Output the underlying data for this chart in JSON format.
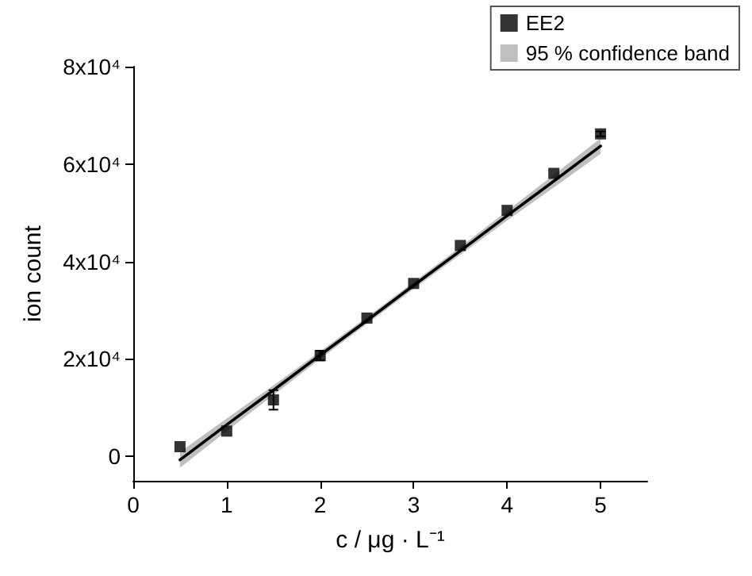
{
  "chart_data": {
    "type": "scatter",
    "xlabel": "c / μg · L⁻¹",
    "ylabel": "ion count",
    "xlim": [
      0,
      5.5
    ],
    "xticks": [
      0,
      1,
      2,
      3,
      4,
      5
    ],
    "ylim": [
      -5000,
      80000
    ],
    "yticks": [
      0,
      {
        "value": 20000,
        "label": "2x10⁴"
      },
      {
        "value": 40000,
        "label": "4x10⁴"
      },
      {
        "value": 60000,
        "label": "6x10⁴"
      },
      {
        "value": 80000,
        "label": "8x10⁴"
      }
    ],
    "grid": false,
    "legend": "top right",
    "marker": "square",
    "series": [
      {
        "name": "EE2",
        "color": "#000000",
        "x": [
          0.5,
          1,
          1.5,
          2,
          2.5,
          3,
          3.5,
          4,
          4.5,
          5
        ],
        "values": [
          2000,
          5200,
          11600,
          20700,
          28400,
          35500,
          43300,
          50500,
          58100,
          66200
        ],
        "errors": [
          null,
          null,
          2000,
          1000,
          null,
          null,
          null,
          null,
          null,
          500
        ]
      },
      {
        "type": "line",
        "name": "95 % confidence band",
        "color": "#000000",
        "marker": "none",
        "x": [
          0.5,
          1,
          1.5,
          2,
          2.5,
          3,
          3.5,
          4,
          4.5,
          5
        ],
        "values": [
          -700,
          6500,
          13600,
          20800,
          27900,
          35100,
          42200,
          49400,
          56500,
          63700
        ],
        "lower": [
          -2300,
          5200,
          12600,
          20000,
          27200,
          34400,
          41400,
          48400,
          55200,
          62100
        ],
        "upper": [
          900,
          7800,
          14600,
          21600,
          28600,
          35800,
          43000,
          50400,
          57800,
          65300
        ]
      }
    ]
  }
}
